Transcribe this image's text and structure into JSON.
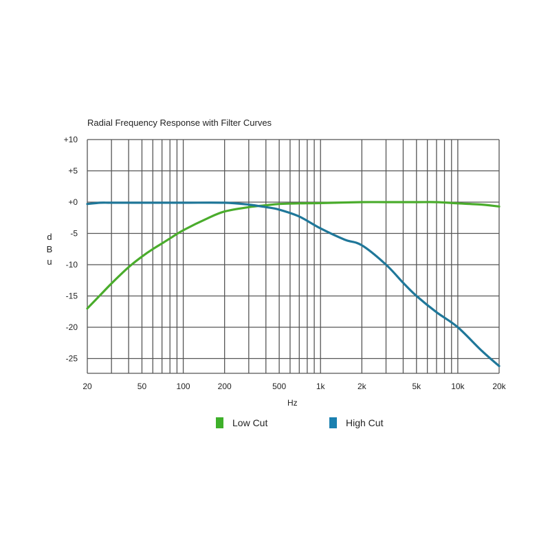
{
  "chart_data": {
    "type": "line",
    "title": "Radial Frequency Response with Filter Curves",
    "xlabel": "Hz",
    "ylabel": "dBu",
    "xscale": "log",
    "xlim": [
      20,
      20000
    ],
    "ylim": [
      -27.5,
      10
    ],
    "grid": true,
    "legend_position": "bottom",
    "y_ticks": [
      10,
      5,
      0,
      -5,
      -10,
      -15,
      -20,
      -25
    ],
    "y_tick_labels": [
      "+10",
      "+5",
      "+0",
      "-5",
      "-10",
      "-15",
      "-20",
      "-25"
    ],
    "x_ticks": [
      20,
      50,
      100,
      200,
      500,
      1000,
      2000,
      5000,
      10000,
      20000
    ],
    "x_tick_labels": [
      "20",
      "50",
      "100",
      "200",
      "500",
      "1k",
      "2k",
      "5k",
      "10k",
      "20k"
    ],
    "x_gridlines": [
      20,
      30,
      40,
      50,
      60,
      70,
      80,
      90,
      100,
      200,
      300,
      400,
      500,
      600,
      700,
      800,
      900,
      1000,
      2000,
      3000,
      4000,
      5000,
      6000,
      7000,
      8000,
      9000,
      10000,
      20000
    ],
    "series": [
      {
        "name": "Low Cut",
        "color": "#4aac2c",
        "x": [
          20,
          25,
          30,
          40,
          50,
          60,
          70,
          80,
          100,
          150,
          200,
          300,
          400,
          500,
          700,
          1000,
          2000,
          3000,
          5000,
          7000,
          10000,
          15000,
          20000
        ],
        "values": [
          -17,
          -14.8,
          -13,
          -10.4,
          -8.7,
          -7.5,
          -6.6,
          -5.8,
          -4.5,
          -2.6,
          -1.5,
          -0.8,
          -0.5,
          -0.3,
          -0.2,
          -0.15,
          0,
          0,
          0,
          0,
          -0.2,
          -0.4,
          -0.7
        ]
      },
      {
        "name": "High Cut",
        "color": "#1f7799",
        "x": [
          20,
          25,
          30,
          50,
          100,
          200,
          300,
          400,
          500,
          700,
          1000,
          1500,
          2000,
          3000,
          4000,
          5000,
          7000,
          10000,
          15000,
          20000
        ],
        "values": [
          -0.3,
          -0.1,
          -0.1,
          -0.1,
          -0.1,
          -0.1,
          -0.4,
          -0.8,
          -1.2,
          -2.3,
          -4.2,
          -6.0,
          -6.9,
          -10.0,
          -12.9,
          -15.0,
          -17.6,
          -20.0,
          -23.8,
          -26.2
        ]
      }
    ]
  },
  "legend": {
    "items": [
      {
        "label": "Low Cut",
        "color": "#3eb02a"
      },
      {
        "label": "High Cut",
        "color": "#1a80b0"
      }
    ]
  }
}
